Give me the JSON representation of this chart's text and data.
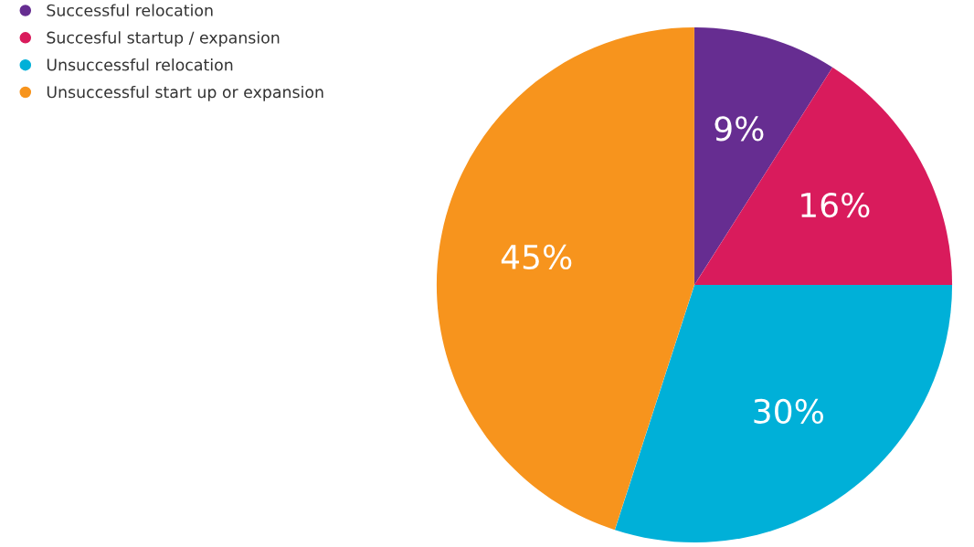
{
  "chart_data": {
    "type": "pie",
    "categories": [
      "Successful relocation",
      "Succesful startup / expansion",
      "Unsuccessful relocation",
      "Unsuccessful start up or expansion"
    ],
    "values": [
      9,
      16,
      30,
      45
    ],
    "colors": [
      "#662d91",
      "#d91b5c",
      "#00b0d8",
      "#f7941d"
    ],
    "value_labels": [
      "9%",
      "16%",
      "30%",
      "45%"
    ],
    "legend": "top left"
  }
}
